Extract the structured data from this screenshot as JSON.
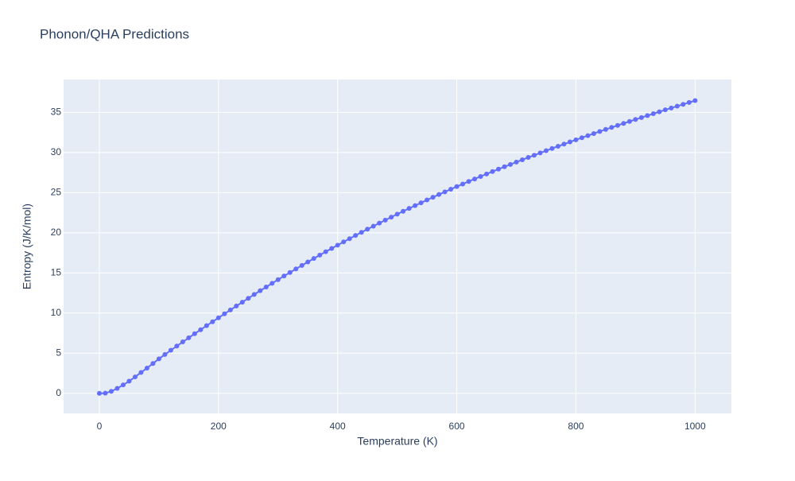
{
  "chart_data": {
    "type": "line",
    "title": "Phonon/QHA Predictions",
    "xlabel": "Temperature (K)",
    "ylabel": "Entropy (J/K/mol)",
    "x": [
      0,
      10,
      20,
      30,
      40,
      50,
      60,
      70,
      80,
      90,
      100,
      110,
      120,
      130,
      140,
      150,
      160,
      170,
      180,
      190,
      200,
      210,
      220,
      230,
      240,
      250,
      260,
      270,
      280,
      290,
      300,
      310,
      320,
      330,
      340,
      350,
      360,
      370,
      380,
      390,
      400,
      410,
      420,
      430,
      440,
      450,
      460,
      470,
      480,
      490,
      500,
      510,
      520,
      530,
      540,
      550,
      560,
      570,
      580,
      590,
      600,
      610,
      620,
      630,
      640,
      650,
      660,
      670,
      680,
      690,
      700,
      710,
      720,
      730,
      740,
      750,
      760,
      770,
      780,
      790,
      800,
      810,
      820,
      830,
      840,
      850,
      860,
      870,
      880,
      890,
      900,
      910,
      920,
      930,
      940,
      950,
      960,
      970,
      980,
      990,
      1000
    ],
    "series": [
      {
        "color": "#636efa",
        "values": [
          0,
          0.02,
          0.25,
          0.62,
          1.05,
          1.52,
          2.05,
          2.6,
          3.15,
          3.72,
          4.3,
          4.84,
          5.37,
          5.89,
          6.41,
          6.92,
          7.43,
          7.93,
          8.43,
          8.92,
          9.41,
          9.9,
          10.39,
          10.88,
          11.36,
          11.84,
          12.32,
          12.79,
          13.25,
          13.71,
          14.17,
          14.62,
          15.06,
          15.5,
          15.94,
          16.37,
          16.8,
          17.22,
          17.64,
          18.05,
          18.46,
          18.87,
          19.27,
          19.67,
          20.06,
          20.45,
          20.83,
          21.21,
          21.58,
          21.95,
          22.32,
          22.68,
          23.04,
          23.39,
          23.74,
          24.09,
          24.43,
          24.77,
          25.1,
          25.43,
          25.76,
          26.08,
          26.4,
          26.71,
          27.02,
          27.33,
          27.63,
          27.93,
          28.23,
          28.52,
          28.81,
          29.1,
          29.39,
          29.67,
          29.95,
          30.23,
          30.51,
          30.78,
          31.05,
          31.32,
          31.59,
          31.85,
          32.11,
          32.37,
          32.63,
          32.88,
          33.13,
          33.38,
          33.63,
          33.88,
          34.12,
          34.36,
          34.6,
          34.84,
          35.08,
          35.32,
          35.55,
          35.78,
          36.01,
          36.24,
          36.47
        ]
      }
    ],
    "xlim": [
      -60,
      1061
    ],
    "ylim": [
      -2.5,
      39.1
    ],
    "xticks": [
      0,
      200,
      400,
      600,
      800,
      1000
    ],
    "yticks": [
      0,
      5,
      10,
      15,
      20,
      25,
      30,
      35
    ],
    "grid": true
  }
}
